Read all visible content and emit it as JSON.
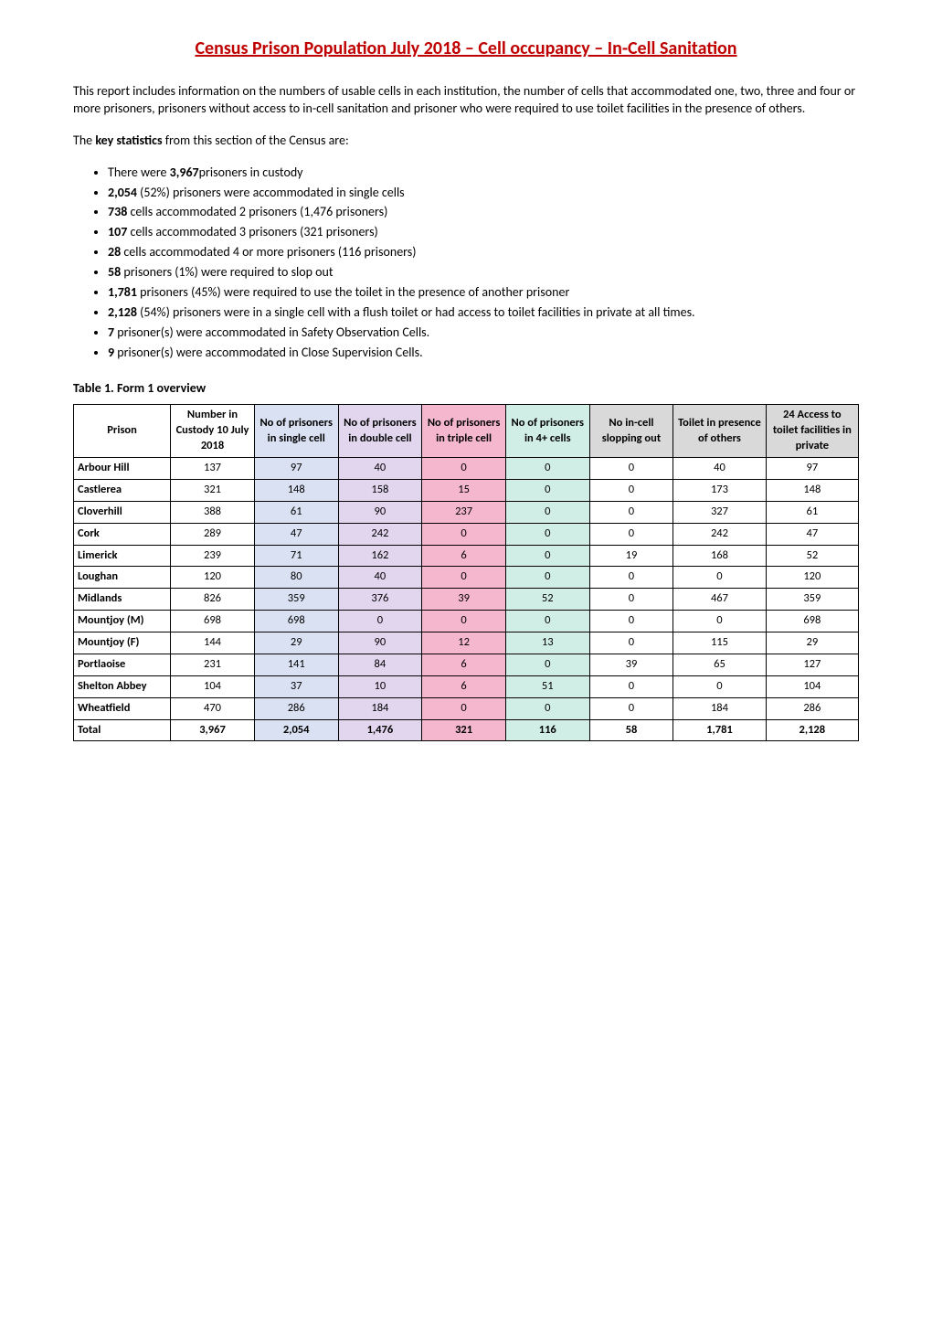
{
  "title": "Census Prison Population July 2018 – Cell occupancy – In-Cell Sanitation",
  "intro": "This report includes information on the numbers of usable cells in each institution, the number of cells that accommodated one, two, three and four or more prisoners, prisoners without access to in-cell sanitation and prisoner who were required to use toilet facilities in the presence of others.",
  "keystats_lead_a": "The ",
  "keystats_lead_b": "key statistics",
  "keystats_lead_c": " from this section of the Census are:",
  "bullets": {
    "b0a": "There were ",
    "b0b": "3,967",
    "b0c": "prisoners in custody",
    "b1a": "2,054",
    "b1b": " (52%) prisoners were accommodated in single cells",
    "b2a": "738",
    "b2b": " cells accommodated 2 prisoners (1,476 prisoners)",
    "b3a": "107",
    "b3b": " cells accommodated 3 prisoners (321 prisoners)",
    "b4a": "28",
    "b4b": " cells accommodated 4 or more prisoners (116 prisoners)",
    "b5a": "58",
    "b5b": " prisoners (1%) were required to slop out",
    "b6a": "1,781",
    "b6b": " prisoners (45%) were required to use the toilet in the presence of another prisoner",
    "b7a": "2,128",
    "b7b": " (54%) prisoners were in a single cell with a flush toilet or had access to toilet facilities in private at all times.",
    "b8a": "7",
    "b8b": " prisoner(s) were accommodated in Safety Observation Cells.",
    "b9a": "9",
    "b9b": " prisoner(s) were accommodated in Close Supervision Cells."
  },
  "table_caption": "Table 1. Form 1 overview",
  "headers": {
    "prison": "Prison",
    "number": "Number in Custody 10 July 2018",
    "single": "No of prisoners in single cell",
    "double": "No of prisoners in double cell",
    "triple": "No of prisoners in triple cell",
    "four": "No of prisoners in 4+ cells",
    "slop": "No  in-cell slopping out",
    "presence": "Toilet in presence of others",
    "access": "24 Access to toilet facilities in private"
  },
  "colors": {
    "single_bg": "#d9e1f2",
    "double_bg": "#e2d6ef",
    "triple_bg": "#f5b7cd",
    "four_bg": "#d0eee5",
    "grey_bg": "#d9d9d9"
  },
  "rows": [
    {
      "prison": "Arbour Hill",
      "number": "137",
      "single": "97",
      "double": "40",
      "triple": "0",
      "four": "0",
      "slop": "0",
      "presence": "40",
      "access": "97"
    },
    {
      "prison": "Castlerea",
      "number": "321",
      "single": "148",
      "double": "158",
      "triple": "15",
      "four": "0",
      "slop": "0",
      "presence": "173",
      "access": "148"
    },
    {
      "prison": "Cloverhill",
      "number": "388",
      "single": "61",
      "double": "90",
      "triple": "237",
      "four": "0",
      "slop": "0",
      "presence": "327",
      "access": "61"
    },
    {
      "prison": "Cork",
      "number": "289",
      "single": "47",
      "double": "242",
      "triple": "0",
      "four": "0",
      "slop": "0",
      "presence": "242",
      "access": "47"
    },
    {
      "prison": "Limerick",
      "number": "239",
      "single": "71",
      "double": "162",
      "triple": "6",
      "four": "0",
      "slop": "19",
      "presence": "168",
      "access": "52"
    },
    {
      "prison": "Loughan",
      "number": "120",
      "single": "80",
      "double": "40",
      "triple": "0",
      "four": "0",
      "slop": "0",
      "presence": "0",
      "access": "120"
    },
    {
      "prison": "Midlands",
      "number": "826",
      "single": "359",
      "double": "376",
      "triple": "39",
      "four": "52",
      "slop": "0",
      "presence": "467",
      "access": "359"
    },
    {
      "prison": "Mountjoy (M)",
      "number": "698",
      "single": "698",
      "double": "0",
      "triple": "0",
      "four": "0",
      "slop": "0",
      "presence": "0",
      "access": "698"
    },
    {
      "prison": "Mountjoy (F)",
      "number": "144",
      "single": "29",
      "double": "90",
      "triple": "12",
      "four": "13",
      "slop": "0",
      "presence": "115",
      "access": "29"
    },
    {
      "prison": "Portlaoise",
      "number": "231",
      "single": "141",
      "double": "84",
      "triple": "6",
      "four": "0",
      "slop": "39",
      "presence": "65",
      "access": "127"
    },
    {
      "prison": "Shelton Abbey",
      "number": "104",
      "single": "37",
      "double": "10",
      "triple": "6",
      "four": "51",
      "slop": "0",
      "presence": "0",
      "access": "104"
    },
    {
      "prison": "Wheatfield",
      "number": "470",
      "single": "286",
      "double": "184",
      "triple": "0",
      "four": "0",
      "slop": "0",
      "presence": "184",
      "access": "286"
    }
  ],
  "total": {
    "prison": "Total",
    "number": "3,967",
    "single": "2,054",
    "double": "1,476",
    "triple": "321",
    "four": "116",
    "slop": "58",
    "presence": "1,781",
    "access": "2,128"
  }
}
